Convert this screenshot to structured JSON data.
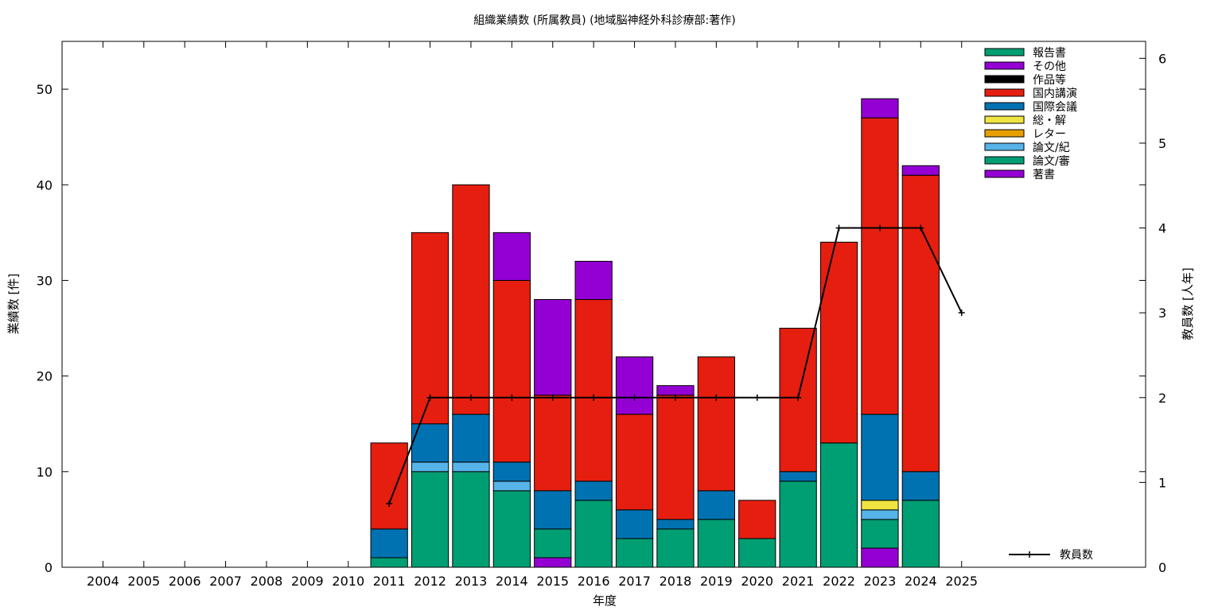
{
  "chart_data": {
    "type": "bar",
    "stacked": true,
    "title": "組織業績数 (所属教員) (地域脳神経外科診療部:著作)",
    "xlabel": "年度",
    "ylabel": "業績数 [件]",
    "y2label": "教員数 [人年]",
    "ylim": [
      0,
      55
    ],
    "y2lim": [
      0,
      6.2
    ],
    "yticks": [
      0,
      10,
      20,
      30,
      40,
      50
    ],
    "y2ticks": [
      0,
      1,
      2,
      3,
      4,
      5,
      6
    ],
    "legend_position": "top-right",
    "categories": [
      "2004",
      "2005",
      "2006",
      "2007",
      "2008",
      "2009",
      "2010",
      "2011",
      "2012",
      "2013",
      "2014",
      "2015",
      "2016",
      "2017",
      "2018",
      "2019",
      "2020",
      "2021",
      "2022",
      "2023",
      "2024",
      "2025"
    ],
    "series": [
      {
        "name": "著書",
        "color": "#9400d3",
        "values": [
          0,
          0,
          0,
          0,
          0,
          0,
          0,
          0,
          0,
          0,
          0,
          1,
          0,
          0,
          0,
          0,
          0,
          0,
          0,
          2,
          0,
          0
        ]
      },
      {
        "name": "論文/審",
        "color": "#009e73",
        "values": [
          0,
          0,
          0,
          0,
          0,
          0,
          0,
          1,
          10,
          10,
          8,
          3,
          7,
          3,
          4,
          5,
          3,
          9,
          13,
          3,
          7,
          0
        ]
      },
      {
        "name": "論文/紀",
        "color": "#56b4e9",
        "values": [
          0,
          0,
          0,
          0,
          0,
          0,
          0,
          0,
          1,
          1,
          1,
          0,
          0,
          0,
          0,
          0,
          0,
          0,
          0,
          1,
          0,
          0
        ]
      },
      {
        "name": "レター",
        "color": "#e69f00",
        "values": [
          0,
          0,
          0,
          0,
          0,
          0,
          0,
          0,
          0,
          0,
          0,
          0,
          0,
          0,
          0,
          0,
          0,
          0,
          0,
          0,
          0,
          0
        ]
      },
      {
        "name": "総・解",
        "color": "#f0e442",
        "values": [
          0,
          0,
          0,
          0,
          0,
          0,
          0,
          0,
          0,
          0,
          0,
          0,
          0,
          0,
          0,
          0,
          0,
          0,
          0,
          1,
          0,
          0
        ]
      },
      {
        "name": "国際会議",
        "color": "#0072b2",
        "values": [
          0,
          0,
          0,
          0,
          0,
          0,
          0,
          3,
          4,
          5,
          2,
          4,
          2,
          3,
          1,
          3,
          0,
          1,
          0,
          9,
          3,
          0
        ]
      },
      {
        "name": "国内講演",
        "color": "#e51e10",
        "values": [
          0,
          0,
          0,
          0,
          0,
          0,
          0,
          9,
          20,
          24,
          19,
          10,
          19,
          10,
          13,
          14,
          4,
          15,
          21,
          31,
          31,
          0
        ]
      },
      {
        "name": "作品等",
        "color": "#000000",
        "values": [
          0,
          0,
          0,
          0,
          0,
          0,
          0,
          0,
          0,
          0,
          0,
          0,
          0,
          0,
          0,
          0,
          0,
          0,
          0,
          0,
          0,
          0
        ]
      },
      {
        "name": "その他",
        "color": "#9400d3",
        "values": [
          0,
          0,
          0,
          0,
          0,
          0,
          0,
          0,
          0,
          0,
          5,
          10,
          4,
          6,
          1,
          0,
          0,
          0,
          0,
          2,
          1,
          0
        ]
      },
      {
        "name": "報告書",
        "color": "#009e73",
        "values": [
          0,
          0,
          0,
          0,
          0,
          0,
          0,
          0,
          0,
          0,
          0,
          0,
          0,
          0,
          0,
          0,
          0,
          0,
          0,
          0,
          0,
          0
        ]
      }
    ],
    "line": {
      "name": "教員数",
      "color": "#000000",
      "x": [
        "2011",
        "2012",
        "2013",
        "2014",
        "2015",
        "2016",
        "2017",
        "2018",
        "2019",
        "2020",
        "2021",
        "2022",
        "2023",
        "2024",
        "2025"
      ],
      "values": [
        0.75,
        2,
        2,
        2,
        2,
        2,
        2,
        2,
        2,
        2,
        2,
        4,
        4,
        4,
        3
      ]
    }
  }
}
